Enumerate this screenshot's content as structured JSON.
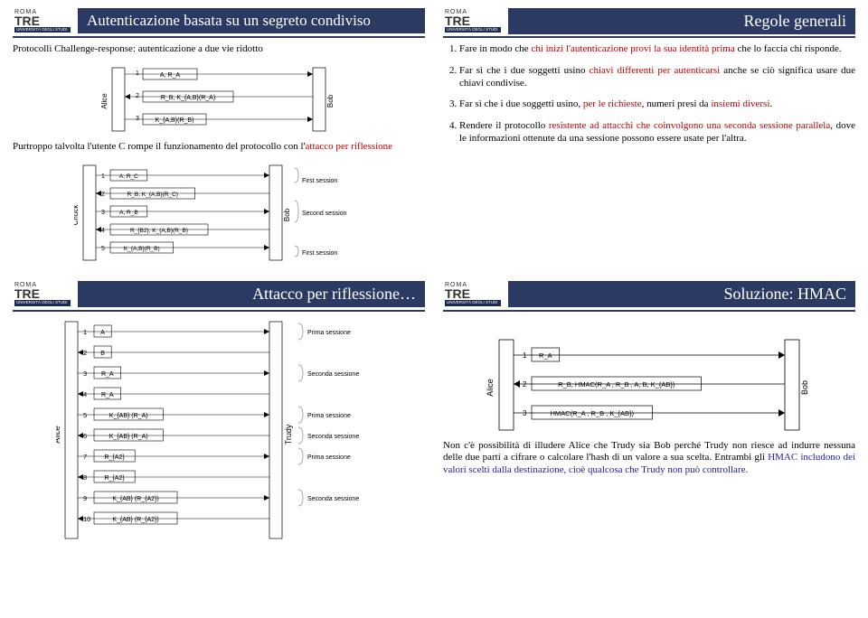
{
  "logo": {
    "roma": "ROMA",
    "tre": "TRE",
    "sub": "UNIVERSITÀ DEGLI STUDI"
  },
  "q1": {
    "title": "Autenticazione basata su un segreto condiviso",
    "intro": "Protocolli Challenge-response: autenticazione a due vie ridotto",
    "attack_note_pre": "Purtroppo talvolta l'utente C rompe il funzionamento del protocollo con l'",
    "attack_note_hl": "attacco per riflessione",
    "diag1": {
      "msgs": [
        "A, R_A",
        "R_B, K_{A,B}(R_A)",
        "K_{A,B}(R_B)"
      ],
      "left": "Alice",
      "right": "Bob"
    },
    "diag2": {
      "left": "Chuck",
      "right": "Bob",
      "msgs": [
        {
          "n": "1",
          "t": "A, R_C",
          "dir": "r",
          "ses": "First session"
        },
        {
          "n": "2",
          "t": "R_B, K_{A,B}(R_C)",
          "dir": "l",
          "ses": ""
        },
        {
          "n": "3",
          "t": "A, R_B",
          "dir": "r",
          "ses": "Second session"
        },
        {
          "n": "4",
          "t": "R_{B2}, K_{A,B}(R_B)",
          "dir": "l",
          "ses": ""
        },
        {
          "n": "5",
          "t": "K_{A,B}(R_B)",
          "dir": "r",
          "ses": "First session"
        }
      ]
    }
  },
  "q2": {
    "title": "Regole generali",
    "rules": [
      {
        "pre": "Fare in modo che ",
        "hl": "chi inizi l'autenticazione provi la sua identità prima",
        "post": " che lo faccia chi risponde."
      },
      {
        "pre": "Far sì che i due soggetti usino ",
        "hl": "chiavi differenti per autenticarsi",
        "post": " anche se ciò significa usare due chiavi condivise."
      },
      {
        "pre": "Far sì che i due soggetti usino, ",
        "hl": "per le richieste",
        "post": ", numeri presi da "
      },
      {
        "pre": "Rendere il protocollo ",
        "hl": "resistente ad attacchi che coinvolgono una seconda sessione parallela",
        "post": ", dove le informazioni ottenute da una sessione possono essere usate per l'altra."
      }
    ],
    "rule3_tail_hl": "insiemi diversi",
    "rule3_tail_post": "."
  },
  "q3": {
    "title": "Attacco per riflessione…",
    "left": "Alice",
    "mid": "Trudy",
    "msgs": [
      {
        "n": "1",
        "t": "A",
        "dir": "r",
        "ses": "Prima sessione"
      },
      {
        "n": "2",
        "t": "B",
        "dir": "l",
        "ses": ""
      },
      {
        "n": "3",
        "t": "R_A",
        "dir": "r",
        "ses": "Seconda sessione"
      },
      {
        "n": "4",
        "t": "R_A",
        "dir": "l",
        "ses": ""
      },
      {
        "n": "5",
        "t": "K_{AB} (R_A)",
        "dir": "r",
        "ses": "Prima sessione"
      },
      {
        "n": "6",
        "t": "K_{AB} (R_A)",
        "dir": "l",
        "ses": "Seconda sessione"
      },
      {
        "n": "7",
        "t": "R_{A2}",
        "dir": "r",
        "ses": "Prima sessione"
      },
      {
        "n": "8",
        "t": "R_{A2}",
        "dir": "l",
        "ses": ""
      },
      {
        "n": "9",
        "t": "K_{AB} (R_{A2})",
        "dir": "r",
        "ses": "Seconda sessione"
      },
      {
        "n": "10",
        "t": "K_{AB} (R_{A2})",
        "dir": "l",
        "ses": ""
      }
    ]
  },
  "q4": {
    "title": "Soluzione: HMAC",
    "left": "Alice",
    "right": "Bob",
    "msgs": [
      {
        "n": "1",
        "t": "R_A",
        "dir": "r"
      },
      {
        "n": "2",
        "t": "R_B, HMAC(R_A , R_B , A, B, K_{AB})",
        "dir": "l"
      },
      {
        "n": "3",
        "t": "HMAC(R_A , R_B , K_{AB})",
        "dir": "r"
      }
    ],
    "note_pre": "Non c'è possibilità di illudere Alice che Trudy sia Bob perché Trudy non riesce ad indurre nessuna delle due parti a cifrare o calcolare l'hash di un valore a sua scelta. Entrambi gli ",
    "note_hl": "HMAC includono dei valori scelti dalla destinazione, cioè qualcosa che Trudy non può controllare.",
    "note_post": ""
  }
}
